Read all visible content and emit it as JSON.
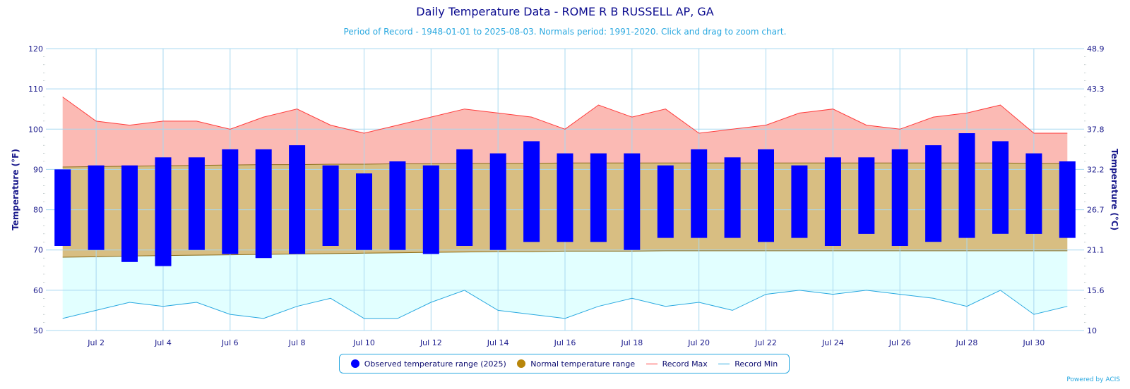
{
  "chart_data": {
    "type": "bar",
    "title": "Daily Temperature Data - ROME R B RUSSELL AP, GA",
    "subtitle": "Period of Record - 1948-01-01 to 2025-08-03. Normals period: 1991-2020. Click and drag to zoom chart.",
    "ylabel": "Temperature (°F)",
    "ylabel_right": "Temperature (°C)",
    "ylim": [
      50,
      120
    ],
    "y_ticks": [
      50,
      60,
      70,
      80,
      90,
      100,
      110,
      120
    ],
    "y_ticks_right": [
      "10",
      "15.6",
      "21.1",
      "26.7",
      "32.2",
      "37.8",
      "43.3",
      "48.9"
    ],
    "x_ticks": [
      "Jul 2",
      "Jul 4",
      "Jul 6",
      "Jul 8",
      "Jul 10",
      "Jul 12",
      "Jul 14",
      "Jul 16",
      "Jul 18",
      "Jul 20",
      "Jul 22",
      "Jul 24",
      "Jul 26",
      "Jul 28",
      "Jul 30"
    ],
    "x_tick_days": [
      2,
      4,
      6,
      8,
      10,
      12,
      14,
      16,
      18,
      20,
      22,
      24,
      26,
      28,
      30
    ],
    "days": [
      1,
      2,
      3,
      4,
      5,
      6,
      7,
      8,
      9,
      10,
      11,
      12,
      13,
      14,
      15,
      16,
      17,
      18,
      19,
      20,
      21,
      22,
      23,
      24,
      25,
      26,
      27,
      28,
      29,
      30,
      31
    ],
    "grid": true,
    "legend_placement": "bottom",
    "series": [
      {
        "name": "Observed temperature range (2025)",
        "color": "#0000ff",
        "low": [
          71,
          70,
          67,
          66,
          70,
          69,
          68,
          69,
          71,
          70,
          70,
          69,
          71,
          70,
          72,
          72,
          72,
          70,
          73,
          73,
          73,
          72,
          73,
          71,
          74,
          71,
          72,
          73,
          74,
          74,
          73
        ],
        "high": [
          90,
          91,
          91,
          93,
          93,
          95,
          95,
          96,
          91,
          89,
          92,
          91,
          95,
          94,
          97,
          94,
          94,
          94,
          91,
          95,
          93,
          95,
          91,
          93,
          93,
          95,
          96,
          99,
          97,
          94,
          92
        ]
      },
      {
        "name": "Normal temperature range",
        "color": "#b8860b",
        "low": [
          68.2,
          68.3,
          68.5,
          68.6,
          68.7,
          68.8,
          68.9,
          69.0,
          69.1,
          69.2,
          69.3,
          69.4,
          69.5,
          69.6,
          69.6,
          69.7,
          69.7,
          69.7,
          69.8,
          69.8,
          69.8,
          69.8,
          69.8,
          69.8,
          69.8,
          69.8,
          69.8,
          69.8,
          69.8,
          69.8,
          69.8
        ],
        "high": [
          90.6,
          90.7,
          90.8,
          90.9,
          91.0,
          91.1,
          91.2,
          91.2,
          91.3,
          91.3,
          91.4,
          91.4,
          91.5,
          91.5,
          91.5,
          91.6,
          91.6,
          91.6,
          91.6,
          91.6,
          91.6,
          91.6,
          91.6,
          91.6,
          91.6,
          91.6,
          91.6,
          91.6,
          91.6,
          91.5,
          91.5
        ]
      },
      {
        "name": "Record Max",
        "color": "#ff3b3b",
        "values": [
          108,
          102,
          101,
          102,
          102,
          100,
          103,
          105,
          101,
          99,
          101,
          103,
          105,
          104,
          103,
          100,
          106,
          103,
          105,
          99,
          100,
          101,
          104,
          105,
          101,
          100,
          103,
          104,
          106,
          99,
          99
        ]
      },
      {
        "name": "Record Min",
        "color": "#29a8e0",
        "values": [
          53,
          55,
          57,
          56,
          57,
          54,
          53,
          56,
          58,
          53,
          53,
          57,
          60,
          55,
          54,
          53,
          56,
          58,
          56,
          57,
          55,
          59,
          60,
          59,
          60,
          59,
          58,
          56,
          60,
          54,
          56
        ]
      }
    ],
    "colors": {
      "record_band": "#fbbab4",
      "normal_band": "#d8be82",
      "cold_band": "#e2ffff",
      "grid": "#a8d8f0",
      "axis_text": "#1a1a8c"
    },
    "credits": "Powered by ACIS"
  }
}
